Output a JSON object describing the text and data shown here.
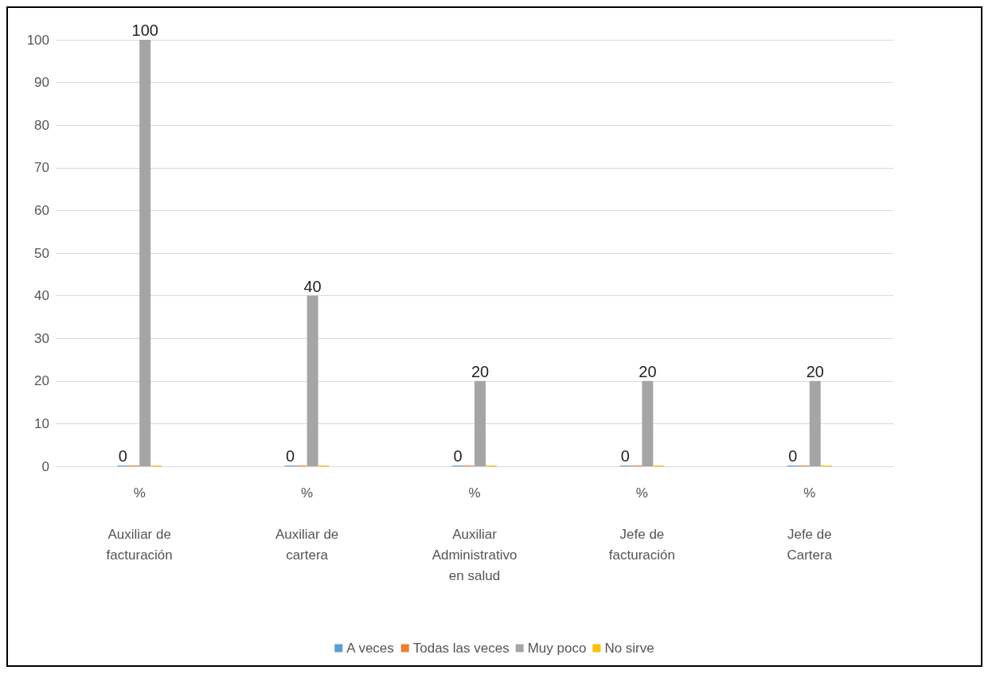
{
  "chart_data": {
    "type": "bar",
    "categories": [
      "%\n\nAuxiliar de\nfacturación",
      "%\n\nAuxiliar de\ncartera",
      "%\n\nAuxiliar\nAdministrativo\nen salud",
      "%\n\nJefe de\nfacturación",
      "%\n\nJefe de\nCartera"
    ],
    "series": [
      {
        "name": "A veces",
        "color": "#5b9bd5",
        "values": [
          0,
          0,
          0,
          0,
          0
        ],
        "value_labels": [
          "0",
          "0",
          "0",
          "0",
          "0"
        ]
      },
      {
        "name": "Todas las veces",
        "color": "#ed7d31",
        "values": [
          0,
          0,
          0,
          0,
          0
        ]
      },
      {
        "name": "Muy poco",
        "color": "#a5a5a5",
        "values": [
          100,
          40,
          20,
          20,
          20
        ],
        "value_labels": [
          "100",
          "40",
          "20",
          "20",
          "20"
        ]
      },
      {
        "name": "No sirve",
        "color": "#ffc000",
        "values": [
          0,
          0,
          0,
          0,
          0
        ]
      }
    ],
    "ylim": [
      0,
      100
    ],
    "yticks": [
      0,
      10,
      20,
      30,
      40,
      50,
      60,
      70,
      80,
      90,
      100
    ],
    "grid": "y",
    "legend": "bottom"
  }
}
